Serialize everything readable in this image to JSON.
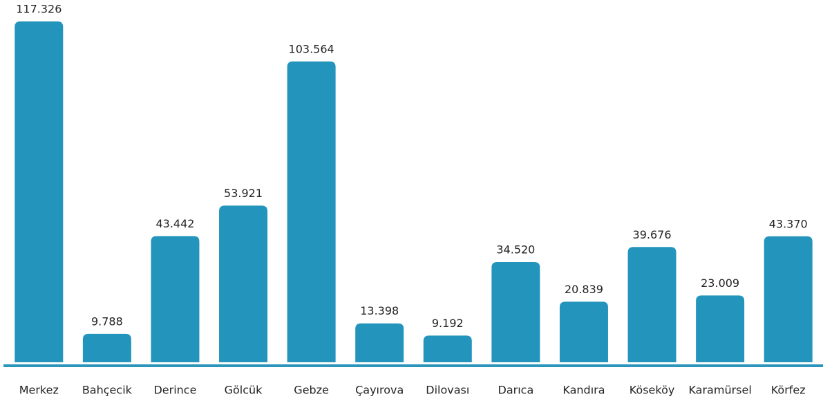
{
  "chart_data": {
    "type": "bar",
    "categories": [
      "Merkez",
      "Bahçecik",
      "Derince",
      "Gölcük",
      "Gebze",
      "Çayırova",
      "Dilovası",
      "Darıca",
      "Kandıra",
      "Köseköy",
      "Karamürsel",
      "Körfez"
    ],
    "values": [
      117326,
      9788,
      43442,
      53921,
      103564,
      13398,
      9192,
      34520,
      20839,
      39676,
      23009,
      43370
    ],
    "value_labels": [
      "117.326",
      "9.788",
      "43.442",
      "53.921",
      "103.564",
      "13.398",
      "9.192",
      "34.520",
      "20.839",
      "39.676",
      "23.009",
      "43.370"
    ],
    "color": "#2394bb"
  }
}
